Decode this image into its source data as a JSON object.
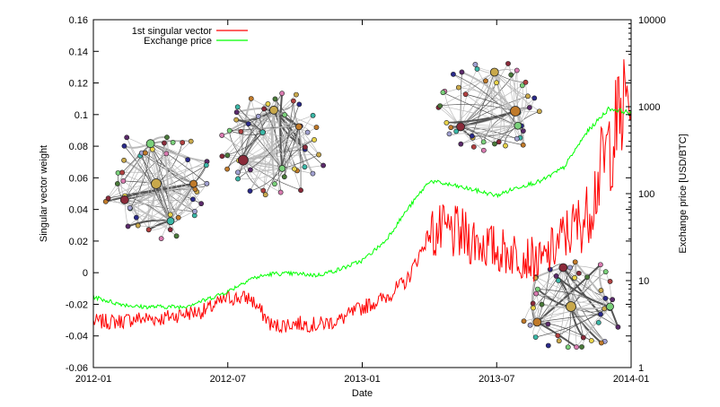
{
  "chart_data": {
    "type": "line",
    "xlabel": "Date",
    "ylabel_left": "Singular vector weight",
    "ylabel_right": "Exchange price [USD/BTC]",
    "x_ticks": [
      "2012-01",
      "2012-07",
      "2013-01",
      "2013-07",
      "2014-01"
    ],
    "y_left_ticks": [
      -0.06,
      -0.04,
      -0.02,
      0,
      0.02,
      0.04,
      0.06,
      0.08,
      0.1,
      0.12,
      0.14,
      0.16
    ],
    "y_left_tick_labels": [
      "-0.06",
      "-0.04",
      "-0.02",
      "0",
      "0.02",
      "0.04",
      "0.06",
      "0.08",
      "0.1",
      "0.12",
      "0.14",
      "0.16"
    ],
    "ylim_left": [
      -0.06,
      0.16
    ],
    "y_right_ticks": [
      1,
      10,
      100,
      1000,
      10000
    ],
    "y_right_tick_labels": [
      "1",
      "10",
      "100",
      "1000",
      "10000"
    ],
    "ylim_right": [
      1,
      10000
    ],
    "y_right_scale": "log",
    "grid": false,
    "legend_position": "top-left",
    "series": [
      {
        "name": "1st singular vector",
        "axis": "left",
        "color": "#ff0000",
        "x": [
          "2012-01-01",
          "2012-02-01",
          "2012-03-01",
          "2012-04-01",
          "2012-05-01",
          "2012-06-01",
          "2012-07-01",
          "2012-08-01",
          "2012-09-01",
          "2012-10-01",
          "2012-11-01",
          "2012-12-01",
          "2013-01-01",
          "2013-02-01",
          "2013-03-01",
          "2013-04-01",
          "2013-05-01",
          "2013-06-01",
          "2013-07-01",
          "2013-08-01",
          "2013-09-01",
          "2013-10-01",
          "2013-11-01",
          "2013-12-01",
          "2014-01-01"
        ],
        "values": [
          -0.031,
          -0.031,
          -0.029,
          -0.029,
          -0.026,
          -0.024,
          -0.016,
          -0.016,
          -0.034,
          -0.032,
          -0.033,
          -0.03,
          -0.022,
          -0.016,
          -0.005,
          0.025,
          0.025,
          0.021,
          0.014,
          0.012,
          0.006,
          0.023,
          0.035,
          0.08,
          0.115
        ]
      },
      {
        "name": "Exchange price",
        "axis": "right",
        "color": "#00ff00",
        "x": [
          "2012-01-01",
          "2012-02-01",
          "2012-03-01",
          "2012-04-01",
          "2012-05-01",
          "2012-06-01",
          "2012-07-01",
          "2012-08-01",
          "2012-09-01",
          "2012-10-01",
          "2012-11-01",
          "2012-12-01",
          "2013-01-01",
          "2013-02-01",
          "2013-03-01",
          "2013-04-01",
          "2013-05-01",
          "2013-06-01",
          "2013-07-01",
          "2013-08-01",
          "2013-09-01",
          "2013-10-01",
          "2013-11-01",
          "2013-12-01",
          "2014-01-01"
        ],
        "values": [
          6.5,
          5.5,
          5,
          5,
          5,
          6,
          7.5,
          10.5,
          12,
          12,
          11.5,
          13.5,
          17,
          28,
          65,
          140,
          125,
          110,
          95,
          120,
          140,
          200,
          500,
          950,
          850
        ]
      }
    ]
  }
}
